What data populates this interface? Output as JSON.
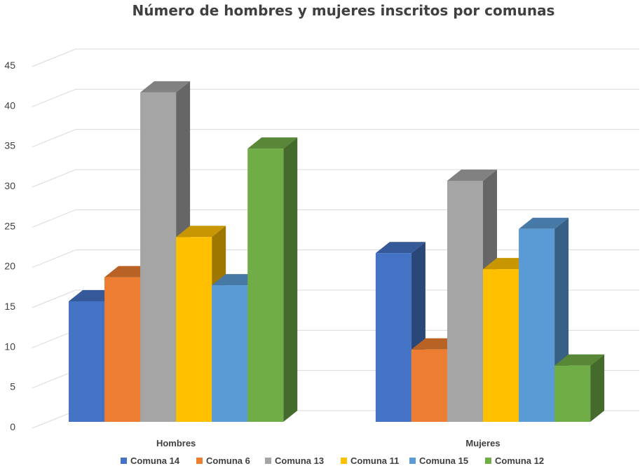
{
  "chart_data": {
    "type": "bar",
    "title": "Número de hombres y mujeres inscritos por comunas",
    "categories": [
      "Hombres",
      "Mujeres"
    ],
    "series": [
      {
        "name": "Comuna 14",
        "color": "#4472C4",
        "values": [
          15,
          21
        ]
      },
      {
        "name": "Comuna 6",
        "color": "#ED7D31",
        "values": [
          18,
          9
        ]
      },
      {
        "name": "Comuna 13",
        "color": "#A5A5A5",
        "values": [
          41,
          30
        ]
      },
      {
        "name": "Comuna 11",
        "color": "#FFC000",
        "values": [
          23,
          19
        ]
      },
      {
        "name": "Comuna 15",
        "color": "#5B9BD5",
        "values": [
          17,
          24
        ]
      },
      {
        "name": "Comuna 12",
        "color": "#70AD47",
        "values": [
          34,
          7
        ]
      }
    ],
    "yticks": [
      "0",
      "5",
      "10",
      "15",
      "20",
      "25",
      "30",
      "35",
      "40",
      "45"
    ],
    "ylim": [
      0,
      45
    ],
    "grid": true,
    "legend": "bottom",
    "style": "3d-clustered-column"
  }
}
